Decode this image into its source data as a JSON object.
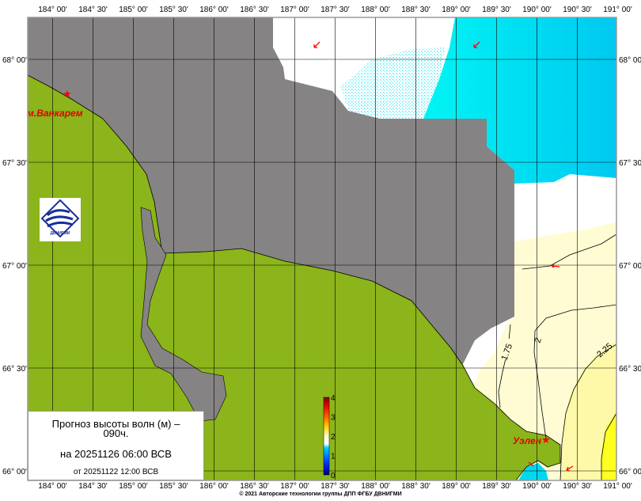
{
  "map": {
    "lon_ticks": [
      "184° 00'",
      "184° 30'",
      "185° 00'",
      "185° 30'",
      "186° 00'",
      "186° 30'",
      "187° 00'",
      "187° 30'",
      "188° 00'",
      "188° 30'",
      "189° 00'",
      "189° 30'",
      "190° 00'",
      "190° 30'",
      "191° 00'"
    ],
    "lat_ticks": [
      "68° 00'",
      "67° 30'",
      "67° 00'",
      "66° 30'",
      "66° 00'"
    ],
    "places": {
      "vankarem": "м.Ванкарем",
      "uelen": "Уэлен"
    },
    "contours": [
      "1.75",
      "2",
      "2.25"
    ],
    "colorbar": {
      "labels": [
        "0",
        "1",
        "2",
        "3",
        "4"
      ],
      "range": [
        0,
        4
      ],
      "unit": "м"
    },
    "colors": {
      "land": "#8bb51a",
      "no_data": "#858384",
      "sea_low": "#00e5f5",
      "sea_mid": "#ffffff",
      "sea_high": "#fffcd4",
      "sea_max": "#ffff00",
      "marker": "#ff0000"
    },
    "logo_text": "ДВНИГМИ"
  },
  "title_box": {
    "line1": "Прогноз высоты волн (м) –",
    "line1b": "090ч.",
    "line2": "на 20251126 06:00 ВСВ",
    "line3": "от 20251122 12:00 ВСВ"
  },
  "copyright": "© 2021 Авторские технологии группы ДПП ФГБУ ДВНИГМИ"
}
